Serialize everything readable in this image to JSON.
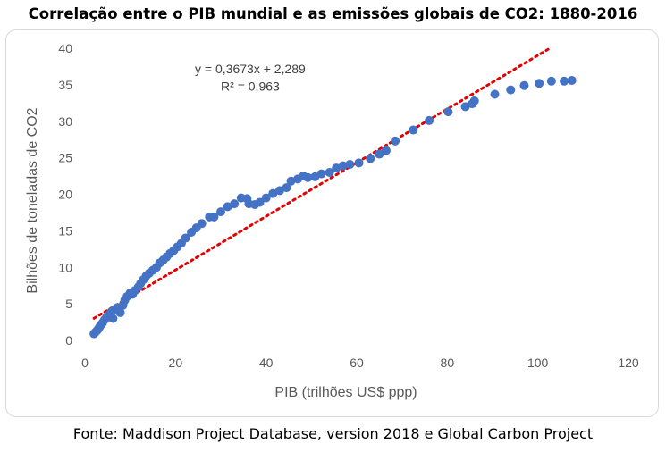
{
  "chart_data": {
    "type": "scatter",
    "title": "Correlação entre o PIB mundial e as emissões globais de CO2: 1880-2016",
    "source": "Fonte: Maddison Project Database, version 2018 e Global Carbon Project",
    "xlabel": "PIB (trilhões US$ ppp)",
    "ylabel": "Bilhões de toneladas de CO2",
    "xlim": [
      0,
      120
    ],
    "ylim": [
      0,
      40
    ],
    "xticks": [
      "0",
      "20",
      "40",
      "60",
      "80",
      "100",
      "120"
    ],
    "yticks": [
      "0",
      "5",
      "10",
      "15",
      "20",
      "25",
      "30",
      "35",
      "40"
    ],
    "grid": false,
    "legend": "none",
    "point_color": "#4472c4",
    "trendline": {
      "color": "#e00000",
      "slope": 0.3673,
      "intercept": 2.289,
      "x_range": [
        2,
        103
      ],
      "equation": "y = 0,3673x + 2,289",
      "r_squared": "R² = 0,963"
    },
    "series": [
      {
        "points": [
          [
            2.0,
            0.9
          ],
          [
            2.3,
            1.1
          ],
          [
            2.6,
            1.3
          ],
          [
            2.9,
            1.5
          ],
          [
            3.2,
            1.8
          ],
          [
            3.5,
            2.1
          ],
          [
            3.9,
            2.4
          ],
          [
            4.3,
            2.8
          ],
          [
            4.8,
            3.2
          ],
          [
            5.3,
            3.5
          ],
          [
            5.8,
            3.9
          ],
          [
            6.3,
            4.1
          ],
          [
            6.8,
            4.3
          ],
          [
            5.5,
            3.2
          ],
          [
            6.2,
            3.0
          ],
          [
            7.2,
            4.5
          ],
          [
            7.8,
            3.8
          ],
          [
            8.4,
            4.8
          ],
          [
            8.8,
            5.5
          ],
          [
            9.3,
            6.0
          ],
          [
            10.0,
            6.5
          ],
          [
            10.5,
            6.3
          ],
          [
            11.0,
            6.8
          ],
          [
            11.8,
            7.3
          ],
          [
            12.3,
            7.8
          ],
          [
            12.9,
            8.3
          ],
          [
            13.5,
            8.8
          ],
          [
            14.2,
            9.2
          ],
          [
            15.0,
            9.6
          ],
          [
            15.8,
            10.0
          ],
          [
            16.5,
            10.6
          ],
          [
            17.3,
            11.0
          ],
          [
            18.0,
            11.4
          ],
          [
            18.8,
            11.9
          ],
          [
            19.6,
            12.3
          ],
          [
            20.4,
            12.8
          ],
          [
            21.3,
            13.3
          ],
          [
            22.2,
            14.0
          ],
          [
            23.5,
            14.8
          ],
          [
            24.6,
            15.4
          ],
          [
            25.8,
            16.0
          ],
          [
            27.5,
            16.9
          ],
          [
            28.5,
            16.9
          ],
          [
            30.0,
            17.6
          ],
          [
            31.5,
            18.3
          ],
          [
            33.0,
            18.7
          ],
          [
            34.5,
            19.5
          ],
          [
            35.8,
            19.4
          ],
          [
            36.2,
            18.7
          ],
          [
            37.5,
            18.6
          ],
          [
            38.6,
            18.9
          ],
          [
            40.0,
            19.5
          ],
          [
            41.5,
            20.1
          ],
          [
            43.0,
            20.5
          ],
          [
            44.5,
            20.9
          ],
          [
            45.5,
            21.8
          ],
          [
            47.0,
            22.1
          ],
          [
            48.2,
            22.5
          ],
          [
            49.2,
            22.3
          ],
          [
            50.8,
            22.4
          ],
          [
            52.2,
            22.8
          ],
          [
            54.0,
            23.0
          ],
          [
            55.5,
            23.6
          ],
          [
            57.0,
            23.9
          ],
          [
            58.5,
            24.1
          ],
          [
            60.5,
            24.3
          ],
          [
            63.0,
            24.9
          ],
          [
            65.0,
            25.5
          ],
          [
            66.5,
            26.0
          ],
          [
            68.5,
            27.3
          ],
          [
            72.5,
            28.8
          ],
          [
            76.0,
            30.1
          ],
          [
            80.2,
            31.3
          ],
          [
            84.0,
            32.0
          ],
          [
            85.5,
            32.4
          ],
          [
            86.0,
            32.8
          ],
          [
            90.5,
            33.7
          ],
          [
            94.0,
            34.3
          ],
          [
            97.0,
            34.9
          ],
          [
            100.3,
            35.2
          ],
          [
            103.0,
            35.5
          ],
          [
            105.8,
            35.5
          ],
          [
            107.5,
            35.6
          ]
        ]
      }
    ]
  }
}
